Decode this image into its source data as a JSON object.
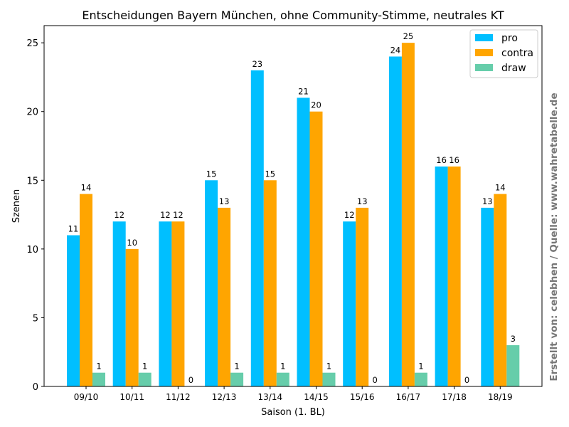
{
  "chart_data": {
    "type": "bar",
    "title": "Entscheidungen Bayern München, ohne Community-Stimme, neutrales KT",
    "xlabel": "Saison (1. BL)",
    "ylabel": "Szenen",
    "ylim": [
      0,
      26.25
    ],
    "yticks": [
      0,
      5,
      10,
      15,
      20,
      25
    ],
    "categories": [
      "09/10",
      "10/11",
      "11/12",
      "12/13",
      "13/14",
      "14/15",
      "15/16",
      "16/17",
      "17/18",
      "18/19"
    ],
    "series": [
      {
        "name": "pro",
        "color": "#00bfff",
        "values": [
          11,
          12,
          12,
          15,
          23,
          21,
          12,
          24,
          16,
          13
        ]
      },
      {
        "name": "contra",
        "color": "#ffa500",
        "values": [
          14,
          10,
          12,
          13,
          15,
          20,
          13,
          25,
          16,
          14
        ]
      },
      {
        "name": "draw",
        "color": "#66cdaa",
        "values": [
          1,
          1,
          0,
          1,
          1,
          1,
          0,
          1,
          0,
          3
        ]
      }
    ],
    "legend_position": "top-right",
    "grid": false,
    "credit": "Erstellt von: celebhen / Quelle: www.wahretabelle.de"
  }
}
